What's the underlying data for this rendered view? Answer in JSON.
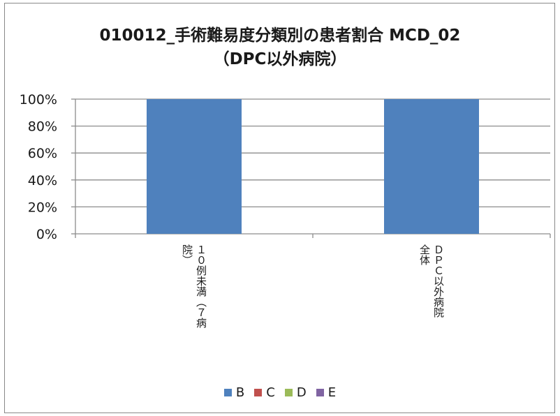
{
  "chart_data": {
    "type": "bar",
    "title": "010012_手術難易度分類別の患者割合 MCD_02",
    "subtitle": "（DPC以外病院）",
    "categories": [
      "10例未満（7病院）",
      "DPC以外病院全体"
    ],
    "category_lines": [
      [
        "１０例未満（７病",
        "院）"
      ],
      [
        "ＤＰＣ以外病院",
        "全体"
      ]
    ],
    "series": [
      {
        "name": "B",
        "color": "#4F81BD",
        "values": [
          100,
          100
        ]
      },
      {
        "name": "C",
        "color": "#C0504D",
        "values": [
          0,
          0
        ]
      },
      {
        "name": "D",
        "color": "#9BBB59",
        "values": [
          0,
          0
        ]
      },
      {
        "name": "E",
        "color": "#8064A2",
        "values": [
          0,
          0
        ]
      }
    ],
    "stacked": true,
    "ylim": [
      0,
      100
    ],
    "yticks": [
      "0%",
      "20%",
      "40%",
      "60%",
      "80%",
      "100%"
    ],
    "grid": true,
    "legend": "bottom"
  }
}
